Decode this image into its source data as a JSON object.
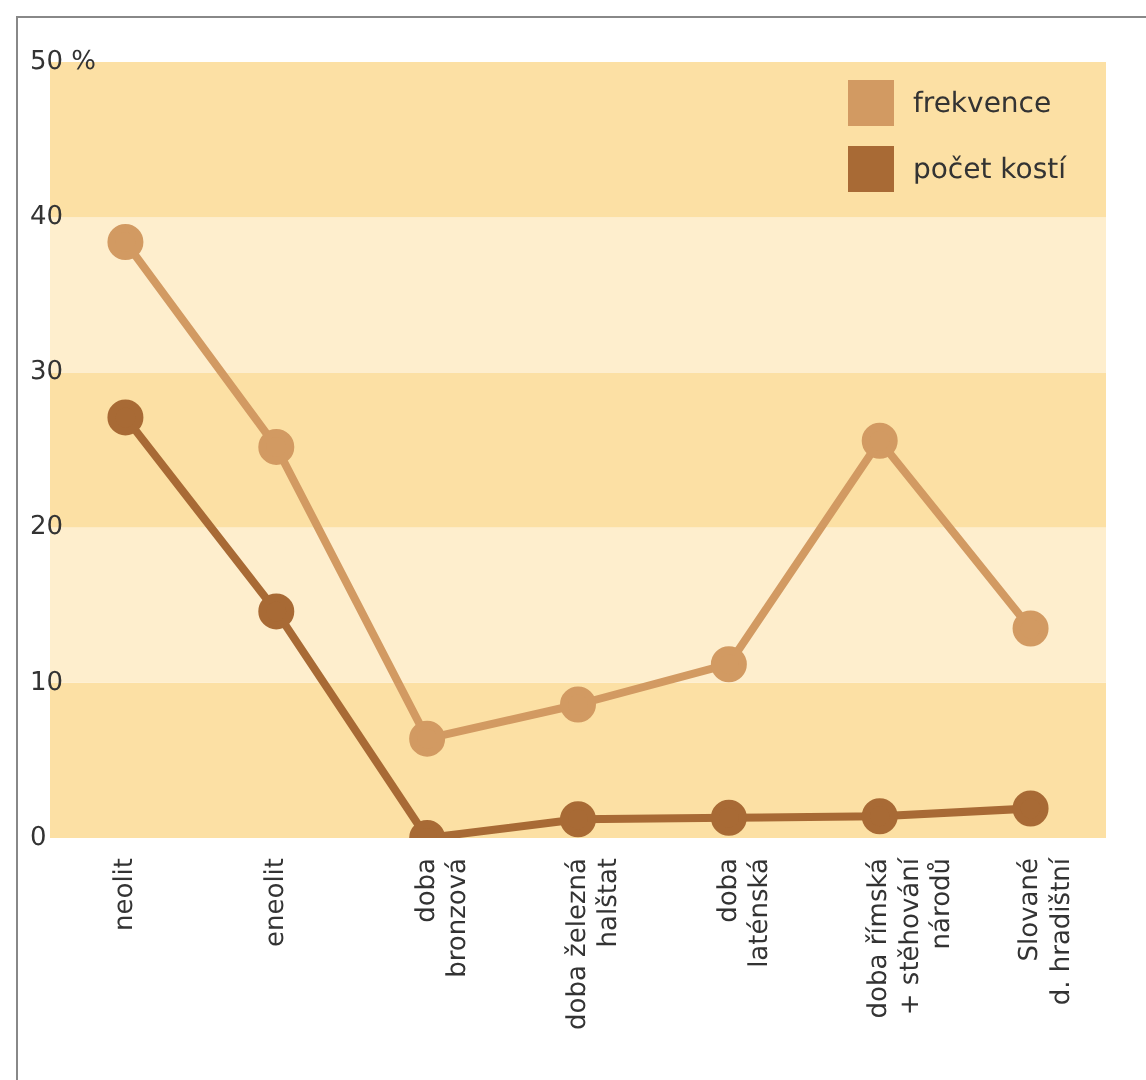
{
  "chart_data": {
    "type": "line",
    "categories": [
      "neolit",
      "eneolit",
      "doba\nbronzová",
      "doba železná\nhalštat",
      "doba\nlaténská",
      "doba římská\n+ stěhování\nnárodů",
      "Slované\nd. hradištní"
    ],
    "series": [
      {
        "name": "frekvence",
        "color": "#d29a62",
        "values": [
          38.4,
          25.2,
          6.4,
          8.6,
          11.2,
          25.6,
          13.5
        ]
      },
      {
        "name": "počet kostí",
        "color": "#a86a35",
        "values": [
          27.1,
          14.6,
          0,
          1.2,
          1.3,
          1.4,
          1.9
        ]
      }
    ],
    "ylim": [
      0,
      50
    ],
    "yticks": [
      0,
      10,
      20,
      30,
      40,
      {
        "value": 50,
        "label": "50 %"
      }
    ],
    "bands": [
      {
        "axis": "y",
        "from": 0,
        "to": 10,
        "color": "#fce0a4"
      },
      {
        "axis": "y",
        "from": 10,
        "to": 20,
        "color": "#feeecd"
      },
      {
        "axis": "y",
        "from": 20,
        "to": 30,
        "color": "#fce0a4"
      },
      {
        "axis": "y",
        "from": 30,
        "to": 40,
        "color": "#feeecd"
      },
      {
        "axis": "y",
        "from": 40,
        "to": 50,
        "color": "#fce0a4"
      }
    ],
    "legend": "top right",
    "marker": "circle",
    "line_style": "solid"
  }
}
